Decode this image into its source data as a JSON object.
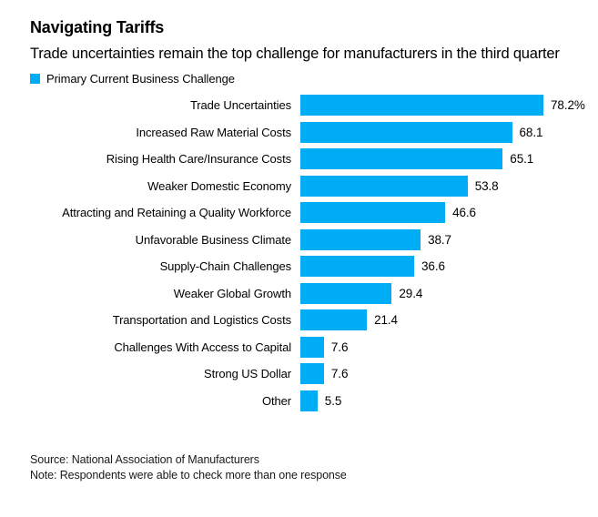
{
  "header": {
    "title": "Navigating Tariffs",
    "subtitle": "Trade uncertainties remain the top challenge for manufacturers in the third quarter",
    "legend_label": "Primary Current Business Challenge"
  },
  "colors": {
    "bar": "#00ACF6",
    "title_text": "#000000",
    "footer_text": "#1a1a1a",
    "background": "#ffffff"
  },
  "chart_data": {
    "type": "bar",
    "orientation": "horizontal",
    "title": "Navigating Tariffs",
    "subtitle": "Trade uncertainties remain the top challenge for manufacturers in the third quarter",
    "legend": [
      "Primary Current Business Challenge"
    ],
    "legend_position": "top-left",
    "grid": false,
    "xlim": [
      0,
      80
    ],
    "unit": "%",
    "categories": [
      "Trade Uncertainties",
      "Increased Raw Material Costs",
      "Rising Health Care/Insurance Costs",
      "Weaker Domestic Economy",
      "Attracting and Retaining a Quality Workforce",
      "Unfavorable Business Climate",
      "Supply-Chain Challenges",
      "Weaker Global Growth",
      "Transportation and Logistics Costs",
      "Challenges With Access to Capital",
      "Strong US Dollar",
      "Other"
    ],
    "values": [
      78.2,
      68.1,
      65.1,
      53.8,
      46.6,
      38.7,
      36.6,
      29.4,
      21.4,
      7.6,
      7.6,
      5.5
    ],
    "value_labels": [
      "78.2%",
      "68.1",
      "65.1",
      "53.8",
      "46.6",
      "38.7",
      "36.6",
      "29.4",
      "21.4",
      "7.6",
      "7.6",
      "5.5"
    ]
  },
  "footer": {
    "source": "Source: National Association of Manufacturers",
    "note": "Note: Respondents were able to check more than one response"
  }
}
